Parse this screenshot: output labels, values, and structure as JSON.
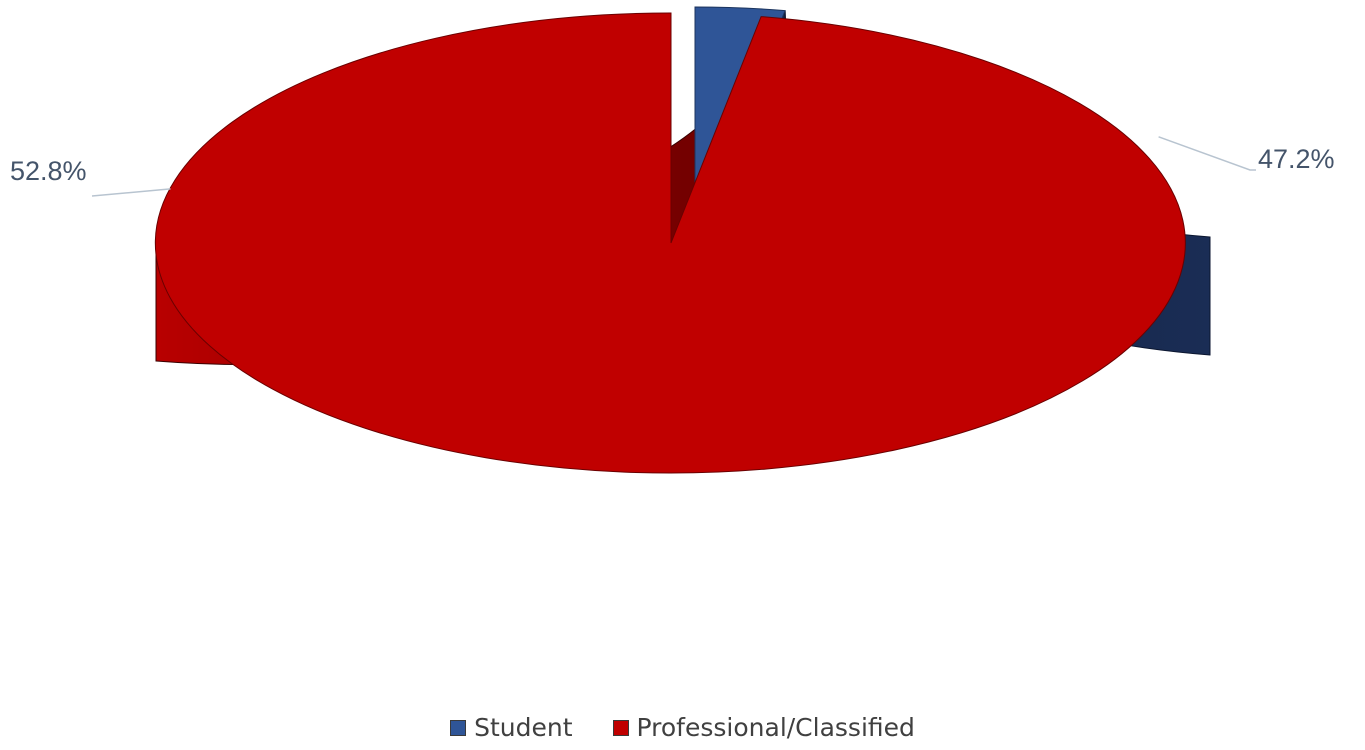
{
  "chart_data": {
    "type": "pie",
    "title": "",
    "categories": [
      "Student",
      "Professional/Classified"
    ],
    "values": [
      47.2,
      52.8
    ],
    "data_labels": [
      "47.2%",
      "52.8%"
    ],
    "colors": [
      "#2F5597",
      "#C00000"
    ],
    "side_colors": [
      "#14254A",
      "#8A0000"
    ],
    "style": "3d-exploded",
    "legend_position": "bottom",
    "grid": false
  },
  "legend": {
    "items": [
      {
        "label": "Student",
        "color": "#2F5597"
      },
      {
        "label": "Professional/Classified",
        "color": "#C00000"
      }
    ]
  }
}
